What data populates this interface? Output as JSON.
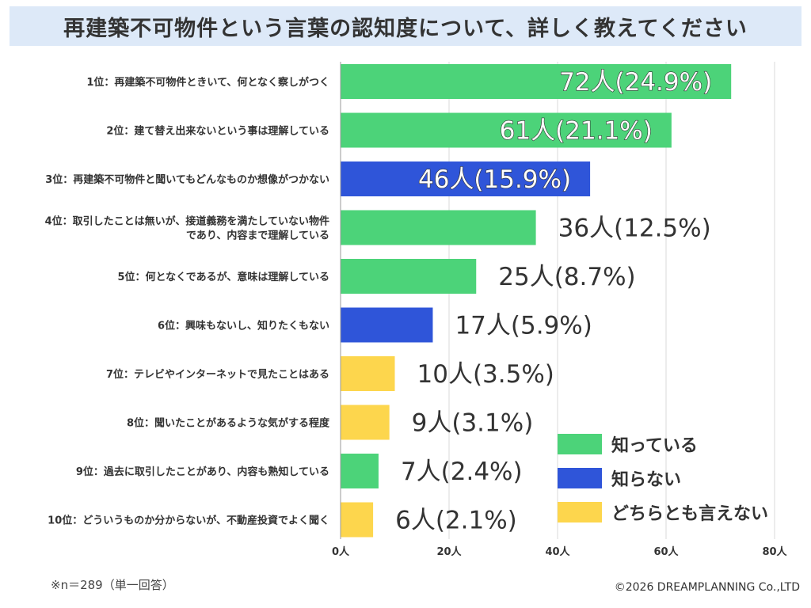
{
  "title": "再建築不可物件という言葉の認知度について、詳しく教えてください",
  "footnote": "※n＝289（単一回答）",
  "credit": "©2026 DREAMPLANNING Co.,LTD",
  "colors": {
    "know": "#4cd379",
    "dont_know": "#2f55d9",
    "neither": "#fdd64d",
    "title_band": "#dde9f8",
    "grid": "#d9d9d9"
  },
  "chart_data": {
    "type": "bar",
    "orientation": "horizontal",
    "categories": [
      [
        "1位：再建築不可物件ときいて、何となく察しがつく"
      ],
      [
        "2位：建て替え出来ないという事は理解している"
      ],
      [
        "3位：再建築不可物件と聞いてもどんなものか想像がつかない"
      ],
      [
        "4位：取引したことは無いが、接道義務を満たしていない物件",
        "であり、内容まで理解している"
      ],
      [
        "5位：何となくであるが、意味は理解している"
      ],
      [
        "6位：興味もないし、知りたくもない"
      ],
      [
        "7位：テレビやインターネットで見たことはある"
      ],
      [
        "8位：聞いたことがあるような気がする程度"
      ],
      [
        "9位：過去に取引したことがあり、内容も熟知している"
      ],
      [
        "10位：どういうものか分からないが、不動産投資でよく聞く"
      ]
    ],
    "values": [
      72,
      61,
      46,
      36,
      25,
      17,
      10,
      9,
      7,
      6
    ],
    "value_labels": [
      "72人(24.9%)",
      "61人(21.1%)",
      "46人(15.9%)",
      "36人(12.5%)",
      "25人(8.7%)",
      "17人(5.9%)",
      "10人(3.5%)",
      "9人(3.1%)",
      "7人(2.4%)",
      "6人(2.1%)"
    ],
    "groups": [
      "know",
      "know",
      "dont_know",
      "know",
      "know",
      "dont_know",
      "neither",
      "neither",
      "know",
      "neither"
    ],
    "xlim": [
      0,
      80
    ],
    "xticks": [
      0,
      20,
      40,
      60,
      80
    ],
    "xtick_labels": [
      "0人",
      "20人",
      "40人",
      "60人",
      "80人"
    ],
    "grid": true,
    "legend": {
      "placement": "bottom-right",
      "entries": [
        {
          "key": "know",
          "label": "知っている"
        },
        {
          "key": "dont_know",
          "label": "知らない"
        },
        {
          "key": "neither",
          "label": "どちらとも言えない"
        }
      ]
    }
  }
}
